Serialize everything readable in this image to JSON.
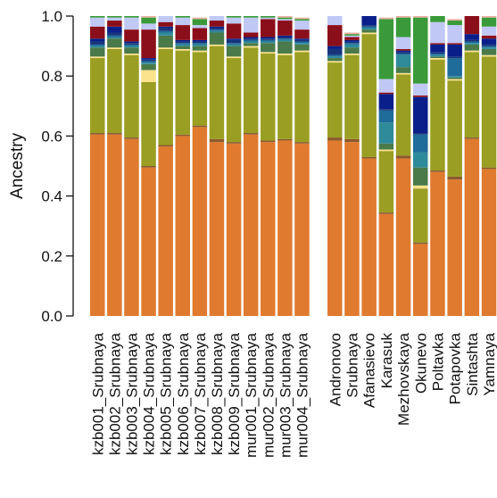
{
  "chart_data": {
    "type": "bar",
    "stacked": true,
    "ylabel": "Ancestry",
    "ylim": [
      0,
      1
    ],
    "yticks": [
      "0.0",
      "0.2",
      "0.4",
      "0.6",
      "0.8",
      "1.0"
    ],
    "grid": false,
    "legend": "none",
    "panels": [
      {
        "categories": [
          "kzb001_Srubnaya",
          "kzb002_Srubnaya",
          "kzb003_Srubnaya",
          "kzb004_Srubnaya",
          "kzb005_Srubnaya",
          "kzb006_Srubnaya",
          "kzb007_Srubnaya",
          "kzb008_Srubnaya",
          "kzb009_Srubnaya",
          "mur001_Srubnaya",
          "mur002_Srubnaya",
          "mur003_Srubnaya",
          "mur004_Srubnaya"
        ]
      },
      {
        "categories": [
          "Andronovo",
          "Srubnaya",
          "Afanasievo",
          "Karasuk",
          "Mezhovskaya",
          "Okunevo",
          "Poltavka",
          "Potapovka",
          "Sintashta",
          "Yamnaya"
        ]
      }
    ],
    "component_colors": [
      "#e07a2e",
      "#8b5a2b",
      "#9a9e22",
      "#fbe28c",
      "#4a7a4a",
      "#2f8a9a",
      "#1f6b9a",
      "#16357a",
      "#0a1f8a",
      "#8b0f1a",
      "#c0c8f5",
      "#3a9a3a",
      "#e8b0a0"
    ],
    "series": [
      {
        "values": [
          0.605,
          0.605,
          0.59,
          0.495,
          0.565,
          0.6,
          0.63,
          0.58,
          0.575,
          0.605,
          0.58,
          0.585,
          0.575,
          0.585,
          0.58,
          0.525,
          0.34,
          0.525,
          0.24,
          0.48,
          0.455,
          0.59,
          0.49
        ]
      },
      {
        "values": [
          0.005,
          0.005,
          0.005,
          0.005,
          0.005,
          0.005,
          0.005,
          0.01,
          0.005,
          0.005,
          0.005,
          0.005,
          0.005,
          0.01,
          0.01,
          0.005,
          0.005,
          0.01,
          0.005,
          0.005,
          0.01,
          0.005,
          0.005
        ]
      },
      {
        "values": [
          0.25,
          0.28,
          0.275,
          0.28,
          0.32,
          0.28,
          0.245,
          0.31,
          0.28,
          0.285,
          0.29,
          0.28,
          0.3,
          0.25,
          0.28,
          0.41,
          0.205,
          0.27,
          0.18,
          0.37,
          0.32,
          0.285,
          0.37
        ]
      },
      {
        "values": [
          0.005,
          0.005,
          0.005,
          0.04,
          0.005,
          0.005,
          0.005,
          0.005,
          0.005,
          0.005,
          0.005,
          0.005,
          0.005,
          0.005,
          0.005,
          0.005,
          0.005,
          0.005,
          0.01,
          0.005,
          0.005,
          0.005,
          0.005
        ]
      },
      {
        "values": [
          0.03,
          0.03,
          0.02,
          0.02,
          0.04,
          0.01,
          0.015,
          0.04,
          0.035,
          0.01,
          0.03,
          0.04,
          0.02,
          0.01,
          0.02,
          0.01,
          0.02,
          0.02,
          0.06,
          0.005,
          0.005,
          0.02,
          0.02
        ]
      },
      {
        "values": [
          0.005,
          0.005,
          0.005,
          0.005,
          0.01,
          0.005,
          0.005,
          0.005,
          0.005,
          0.005,
          0.005,
          0.005,
          0.005,
          0.005,
          0.01,
          0.005,
          0.07,
          0.04,
          0.05,
          0.005,
          0.005,
          0.005,
          0.005
        ]
      },
      {
        "values": [
          0.005,
          0.005,
          0.005,
          0.005,
          0.005,
          0.005,
          0.005,
          0.005,
          0.005,
          0.005,
          0.005,
          0.005,
          0.005,
          0.005,
          0.005,
          0.005,
          0.04,
          0.005,
          0.06,
          0.005,
          0.06,
          0.005,
          0.005
        ]
      },
      {
        "values": [
          0.01,
          0.01,
          0.005,
          0.005,
          0.01,
          0.005,
          0.005,
          0.005,
          0.01,
          0.005,
          0.005,
          0.005,
          0.005,
          0.02,
          0.005,
          0.005,
          0.005,
          0.005,
          0.005,
          0.005,
          0.005,
          0.005,
          0.005
        ]
      },
      {
        "values": [
          0.01,
          0.02,
          0.005,
          0.005,
          0.005,
          0.005,
          0.005,
          0.005,
          0.005,
          0.005,
          0.005,
          0.005,
          0.005,
          0.01,
          0.005,
          0.035,
          0.05,
          0.005,
          0.12,
          0.025,
          0.04,
          0.02,
          0.02
        ]
      },
      {
        "values": [
          0.04,
          0.02,
          0.04,
          0.095,
          0.015,
          0.05,
          0.04,
          0.02,
          0.05,
          0.015,
          0.06,
          0.05,
          0.03,
          0.07,
          0.01,
          0.005,
          0.005,
          0.005,
          0.005,
          0.005,
          0.005,
          0.06,
          0.01
        ]
      },
      {
        "values": [
          0.03,
          0.01,
          0.04,
          0.02,
          0.02,
          0.025,
          0.01,
          0.015,
          0.02,
          0.05,
          0.005,
          0.005,
          0.03,
          0.03,
          0.005,
          0.005,
          0.045,
          0.04,
          0.04,
          0.07,
          0.06,
          0.005,
          0.03
        ]
      },
      {
        "values": [
          0.005,
          0.005,
          0.005,
          0.02,
          0.005,
          0.005,
          0.02,
          0.005,
          0.005,
          0.005,
          0.005,
          0.005,
          0.005,
          0.005,
          0.005,
          0.005,
          0.2,
          0.065,
          0.22,
          0.02,
          0.015,
          0.005,
          0.03
        ]
      },
      {
        "values": [
          0.005,
          0.005,
          0.005,
          0.005,
          0.005,
          0.005,
          0.005,
          0.005,
          0.005,
          0.005,
          0.005,
          0.005,
          0.005,
          0.005,
          0.005,
          0.005,
          0.005,
          0.005,
          0.005,
          0.005,
          0.005,
          0.005,
          0.005
        ]
      }
    ]
  }
}
